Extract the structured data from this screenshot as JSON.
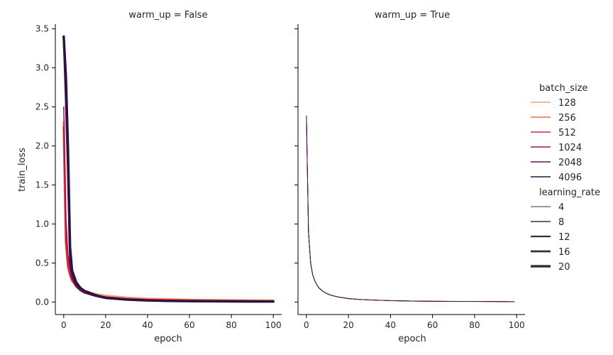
{
  "chart_data": {
    "type": "line",
    "xlabel": "epoch",
    "ylabel": "train_loss",
    "xlim": [
      -4,
      104
    ],
    "ylim": [
      -0.16,
      3.56
    ],
    "xticks": [
      0,
      20,
      40,
      60,
      80,
      100
    ],
    "yticks": [
      0.0,
      0.5,
      1.0,
      1.5,
      2.0,
      2.5,
      3.0,
      3.5
    ],
    "xtick_labels": [
      "0",
      "20",
      "40",
      "60",
      "80",
      "100"
    ],
    "ytick_labels": [
      "0.0",
      "0.5",
      "1.0",
      "1.5",
      "2.0",
      "2.5",
      "3.0",
      "3.5"
    ],
    "grid": false,
    "legend_placement": "right",
    "panels": [
      {
        "title": "warm_up = False",
        "series": [
          {
            "batch_size": 128,
            "learning_rate": 20,
            "color": "#f3a27a",
            "x": [
              0,
              1,
              2,
              3,
              4,
              6,
              8,
              10,
              15,
              20,
              30,
              40,
              50,
              60,
              70,
              80,
              90,
              100
            ],
            "y": [
              2.3,
              0.8,
              0.5,
              0.38,
              0.3,
              0.22,
              0.17,
              0.14,
              0.1,
              0.08,
              0.055,
              0.04,
              0.035,
              0.028,
              0.025,
              0.022,
              0.02,
              0.018
            ]
          },
          {
            "batch_size": 256,
            "learning_rate": 16,
            "color": "#ee6a4e",
            "x": [
              0,
              1,
              2,
              3,
              4,
              6,
              8,
              10,
              15,
              20,
              30,
              40,
              50,
              60,
              70,
              80,
              90,
              100
            ],
            "y": [
              2.2,
              0.75,
              0.45,
              0.34,
              0.27,
              0.2,
              0.15,
              0.12,
              0.085,
              0.065,
              0.045,
              0.035,
              0.03,
              0.024,
              0.02,
              0.018,
              0.016,
              0.015
            ]
          },
          {
            "batch_size": 512,
            "learning_rate": 12,
            "color": "#d9243d",
            "x": [
              0,
              1,
              2,
              3,
              4,
              6,
              8,
              10,
              15,
              20,
              30,
              40,
              50,
              60,
              70,
              80,
              90,
              100
            ],
            "y": [
              2.25,
              0.78,
              0.47,
              0.35,
              0.28,
              0.2,
              0.15,
              0.12,
              0.085,
              0.06,
              0.04,
              0.03,
              0.025,
              0.02,
              0.017,
              0.015,
              0.013,
              0.012
            ]
          },
          {
            "batch_size": 1024,
            "learning_rate": 8,
            "color": "#a11159",
            "x": [
              0,
              1,
              2,
              3,
              4,
              6,
              8,
              10,
              15,
              20,
              30,
              40,
              50,
              60,
              70,
              80,
              90,
              100
            ],
            "y": [
              2.5,
              1.1,
              0.6,
              0.42,
              0.32,
              0.22,
              0.16,
              0.12,
              0.08,
              0.055,
              0.035,
              0.025,
              0.02,
              0.016,
              0.013,
              0.011,
              0.01,
              0.009
            ]
          },
          {
            "batch_size": 2048,
            "learning_rate": 16,
            "color": "#60164f",
            "x": [
              0,
              1,
              2,
              3,
              4,
              6,
              8,
              10,
              15,
              20,
              30,
              40,
              50,
              60,
              70,
              80,
              90,
              100
            ],
            "y": [
              3.4,
              2.6,
              1.7,
              0.5,
              0.32,
              0.2,
              0.15,
              0.12,
              0.08,
              0.05,
              0.03,
              0.02,
              0.015,
              0.012,
              0.01,
              0.009,
              0.008,
              0.007
            ]
          },
          {
            "batch_size": 4096,
            "learning_rate": 20,
            "color": "#2a1340",
            "x": [
              0,
              1,
              2,
              3,
              4,
              6,
              8,
              10,
              15,
              20,
              30,
              40,
              50,
              60,
              70,
              80,
              90,
              100
            ],
            "y": [
              3.4,
              2.9,
              2.0,
              0.7,
              0.4,
              0.25,
              0.18,
              0.14,
              0.09,
              0.055,
              0.032,
              0.02,
              0.015,
              0.012,
              0.01,
              0.008,
              0.007,
              0.006
            ]
          }
        ]
      },
      {
        "title": "warm_up = True",
        "series": [
          {
            "batch_size": 128,
            "learning_rate": 4,
            "color": "#f3a27a",
            "x": [
              0,
              1,
              2,
              3,
              4,
              5,
              6,
              8,
              10,
              12,
              15,
              20,
              25,
              30,
              40,
              50,
              60,
              70,
              80,
              90,
              99
            ],
            "y": [
              2.38,
              0.9,
              0.5,
              0.35,
              0.27,
              0.22,
              0.18,
              0.135,
              0.105,
              0.085,
              0.066,
              0.045,
              0.034,
              0.027,
              0.018,
              0.013,
              0.01,
              0.008,
              0.007,
              0.006,
              0.005
            ]
          },
          {
            "batch_size": 256,
            "learning_rate": 4,
            "color": "#ee6a4e",
            "x": [
              0,
              1,
              2,
              3,
              4,
              5,
              6,
              8,
              10,
              12,
              15,
              20,
              25,
              30,
              40,
              50,
              60,
              70,
              80,
              90,
              99
            ],
            "y": [
              2.39,
              0.91,
              0.5,
              0.35,
              0.27,
              0.22,
              0.18,
              0.135,
              0.105,
              0.085,
              0.066,
              0.045,
              0.034,
              0.027,
              0.018,
              0.013,
              0.01,
              0.008,
              0.007,
              0.006,
              0.005
            ]
          },
          {
            "batch_size": 512,
            "learning_rate": 4,
            "color": "#d9243d",
            "x": [
              0,
              1,
              2,
              3,
              4,
              5,
              6,
              8,
              10,
              12,
              15,
              20,
              25,
              30,
              40,
              50,
              60,
              70,
              80,
              90,
              99
            ],
            "y": [
              2.38,
              0.9,
              0.5,
              0.35,
              0.27,
              0.22,
              0.18,
              0.135,
              0.105,
              0.085,
              0.066,
              0.045,
              0.034,
              0.027,
              0.018,
              0.013,
              0.01,
              0.008,
              0.007,
              0.006,
              0.005
            ]
          },
          {
            "batch_size": 1024,
            "learning_rate": 4,
            "color": "#a11159",
            "x": [
              0,
              1,
              2,
              3,
              4,
              5,
              6,
              8,
              10,
              12,
              15,
              20,
              25,
              30,
              40,
              50,
              60,
              70,
              80,
              90,
              99
            ],
            "y": [
              2.38,
              0.9,
              0.5,
              0.35,
              0.27,
              0.22,
              0.18,
              0.135,
              0.105,
              0.085,
              0.066,
              0.045,
              0.034,
              0.027,
              0.018,
              0.013,
              0.01,
              0.008,
              0.007,
              0.006,
              0.005
            ]
          },
          {
            "batch_size": 2048,
            "learning_rate": 4,
            "color": "#60164f",
            "x": [
              0,
              1,
              2,
              3,
              4,
              5,
              6,
              8,
              10,
              12,
              15,
              20,
              25,
              30,
              40,
              50,
              60,
              70,
              80,
              90,
              99
            ],
            "y": [
              2.38,
              0.9,
              0.5,
              0.35,
              0.27,
              0.22,
              0.18,
              0.135,
              0.105,
              0.085,
              0.066,
              0.045,
              0.034,
              0.027,
              0.018,
              0.013,
              0.01,
              0.008,
              0.007,
              0.006,
              0.005
            ]
          },
          {
            "batch_size": 4096,
            "learning_rate": 4,
            "color": "#2a1340",
            "x": [
              0,
              1,
              2,
              3,
              4,
              5,
              6,
              8,
              10,
              12,
              15,
              20,
              25,
              30,
              40,
              50,
              60,
              70,
              80,
              90,
              99
            ],
            "y": [
              2.38,
              0.9,
              0.5,
              0.35,
              0.27,
              0.22,
              0.18,
              0.135,
              0.105,
              0.085,
              0.066,
              0.045,
              0.034,
              0.027,
              0.018,
              0.013,
              0.01,
              0.008,
              0.007,
              0.006,
              0.005
            ]
          }
        ]
      }
    ],
    "legend": {
      "hue_title": "batch_size",
      "hue_entries": [
        {
          "label": "128",
          "color": "#f3a27a"
        },
        {
          "label": "256",
          "color": "#ee6a4e"
        },
        {
          "label": "512",
          "color": "#d9243d"
        },
        {
          "label": "1024",
          "color": "#a11159"
        },
        {
          "label": "2048",
          "color": "#60164f"
        },
        {
          "label": "4096",
          "color": "#2a1340"
        }
      ],
      "size_title": "learning_rate",
      "size_entries": [
        {
          "label": "4",
          "value": 4
        },
        {
          "label": "8",
          "value": 8
        },
        {
          "label": "12",
          "value": 12
        },
        {
          "label": "16",
          "value": 16
        },
        {
          "label": "20",
          "value": 20
        }
      ]
    }
  }
}
